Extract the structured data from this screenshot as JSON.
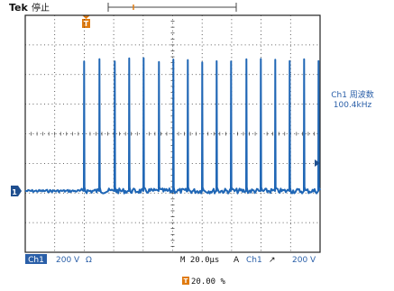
{
  "header": {
    "brand": "Tek",
    "status": "停止"
  },
  "markers": {
    "trigger_position_glyph": "T",
    "record_window_glyph": "T"
  },
  "measurement": {
    "label": "Ch1 周波数",
    "value": "100.4kHz"
  },
  "bottom_bar": {
    "channel": "Ch1",
    "volts_per_div": "200 V",
    "coupling_symbol": "Ω",
    "timebase": "M 20.0µs",
    "trigger_mode": "A",
    "trigger_channel": "Ch1",
    "trigger_slope_symbol": "↗",
    "trigger_level": "200 V",
    "trigger_position_icon": "T",
    "trigger_position_value": "20.00 %"
  },
  "colors": {
    "trace": "#1f66b5",
    "grid": "#2a2a2a",
    "accent_orange": "#e07b10",
    "bar_blue": "#2a5fa8"
  },
  "icons": [
    "trigger-marker-icon",
    "ground-marker-icon",
    "level-marker-icon",
    "slope-icon",
    "ohm-icon"
  ]
}
